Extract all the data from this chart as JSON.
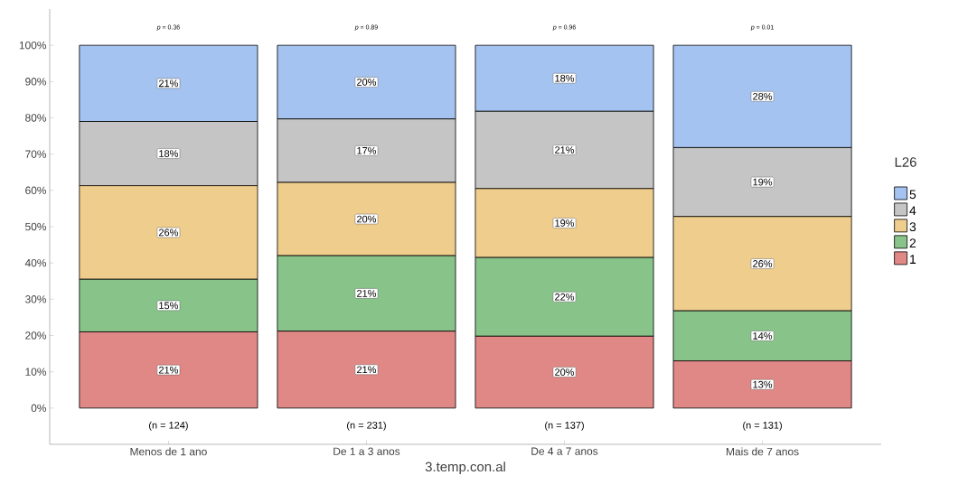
{
  "chart_data": {
    "type": "bar",
    "stacked": true,
    "xlabel": "3.temp.con.al",
    "legend_title": "L26",
    "legend": "right",
    "categories": [
      "Menos de 1 ano",
      "De 1 a 3 anos",
      "De 4 a 7 anos",
      "Mais de 7 anos"
    ],
    "series": [
      {
        "name": "1",
        "color": "#e08885",
        "values": [
          21,
          21.2,
          19.8,
          13
        ],
        "value_labels": [
          "21%",
          "21%",
          "20%",
          "13%"
        ]
      },
      {
        "name": "2",
        "color": "#88c48a",
        "values": [
          14.5,
          20.8,
          21.7,
          13.8
        ],
        "value_labels": [
          "15%",
          "21%",
          "22%",
          "14%"
        ]
      },
      {
        "name": "3",
        "color": "#efcd8d",
        "values": [
          25.8,
          20.2,
          19,
          26
        ],
        "value_labels": [
          "26%",
          "20%",
          "19%",
          "26%"
        ]
      },
      {
        "name": "4",
        "color": "#c5c5c5",
        "values": [
          17.7,
          17.5,
          21.3,
          19
        ],
        "value_labels": [
          "18%",
          "17%",
          "21%",
          "19%"
        ]
      },
      {
        "name": "5",
        "color": "#a5c3f0",
        "values": [
          21,
          20.3,
          18.2,
          28.2
        ],
        "value_labels": [
          "21%",
          "20%",
          "18%",
          "28%"
        ]
      }
    ],
    "ylim": [
      -10,
      110
    ],
    "yticks": [
      {
        "value": 0,
        "label": "0%"
      },
      {
        "value": 10,
        "label": "10%"
      },
      {
        "value": 20,
        "label": "20%"
      },
      {
        "value": 30,
        "label": "30%"
      },
      {
        "value": 40,
        "label": "40%"
      },
      {
        "value": 50,
        "label": "50%"
      },
      {
        "value": 60,
        "label": "60%"
      },
      {
        "value": 70,
        "label": "70%"
      },
      {
        "value": 80,
        "label": "80%"
      },
      {
        "value": 90,
        "label": "90%"
      },
      {
        "value": 100,
        "label": "100%"
      }
    ],
    "annotations": [
      "*p* = 0.36",
      "*p* = 0.89",
      "*p* = 0.96",
      "*p* = 0.01",
      "(n = 124)",
      "(n = 231)",
      "(n = 137)",
      "(n = 131)"
    ]
  }
}
